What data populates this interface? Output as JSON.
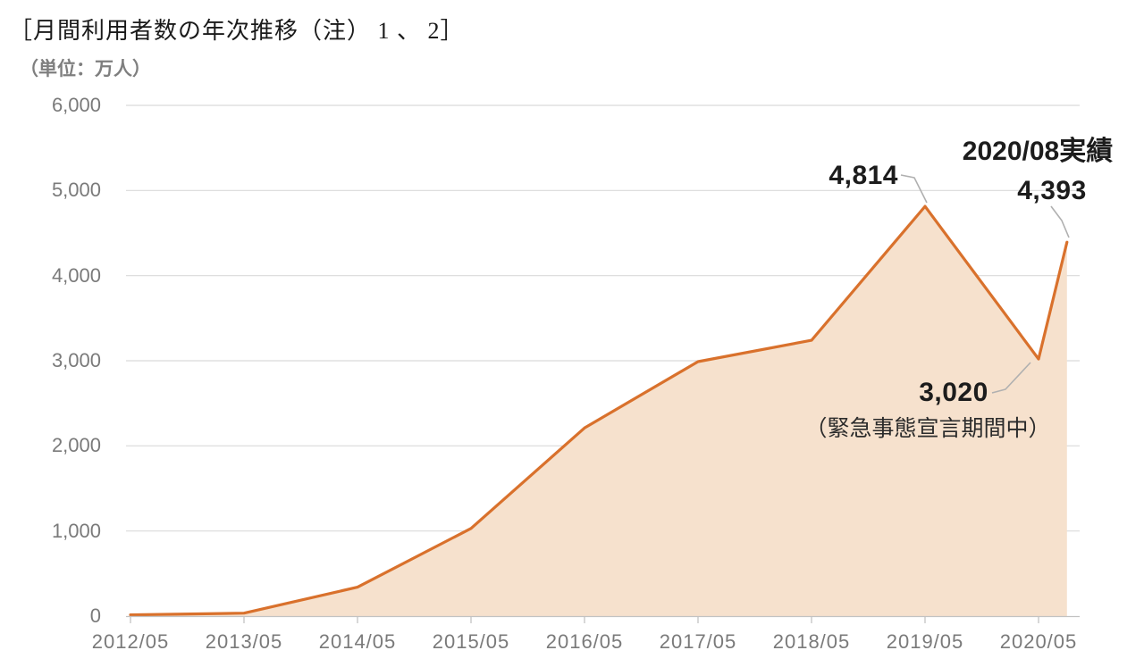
{
  "header": {
    "title": "［月間利用者数の年次推移（注） 1 、 2］",
    "unit_label": "（単位：万人）"
  },
  "annotations": {
    "peak_value": "4,814",
    "latest_label": "2020/08実績",
    "latest_value": "4,393",
    "dip_value": "3,020",
    "dip_note": "（緊急事態宣言期間中）"
  },
  "chart_data": {
    "type": "area",
    "title": "月間利用者数の年次推移",
    "unit": "万人",
    "ylabel": "",
    "xlabel": "",
    "ylim": [
      0,
      6000
    ],
    "y_tick_step": 1000,
    "y_tick_labels": [
      "0",
      "1,000",
      "2,000",
      "3,000",
      "4,000",
      "5,000",
      "6,000"
    ],
    "x_tick_labels": [
      "2012/05",
      "2013/05",
      "2014/05",
      "2015/05",
      "2016/05",
      "2017/05",
      "2018/05",
      "2019/05",
      "2020/05"
    ],
    "grid": true,
    "legend": "none",
    "points": [
      {
        "label": "2012/05",
        "month_offset": 0,
        "value": 15
      },
      {
        "label": "2013/05",
        "month_offset": 12,
        "value": 35
      },
      {
        "label": "2014/05",
        "month_offset": 24,
        "value": 340
      },
      {
        "label": "2015/05",
        "month_offset": 36,
        "value": 1030
      },
      {
        "label": "2016/05",
        "month_offset": 48,
        "value": 2210
      },
      {
        "label": "2017/05",
        "month_offset": 60,
        "value": 2990
      },
      {
        "label": "2018/05",
        "month_offset": 72,
        "value": 3240
      },
      {
        "label": "2019/05",
        "month_offset": 84,
        "value": 4814
      },
      {
        "label": "2020/05",
        "month_offset": 96,
        "value": 3020
      },
      {
        "label": "2020/08",
        "month_offset": 99,
        "value": 4393
      }
    ],
    "annotated_points": [
      {
        "label": "2019/05",
        "value": 4814,
        "text": "4,814"
      },
      {
        "label": "2020/05",
        "value": 3020,
        "text": "3,020（緊急事態宣言期間中）"
      },
      {
        "label": "2020/08",
        "value": 4393,
        "text": "2020/08実績 4,393"
      }
    ],
    "colors": {
      "line": "#d9712c",
      "fill": "#f6e1cd",
      "grid": "#d9d9d9",
      "axis": "#c2c2c2",
      "tick": "#c2c2c2",
      "axis_text": "#7a7a7a",
      "annotation_text": "#1c1c1c",
      "leader": "#b0b0b0"
    }
  }
}
